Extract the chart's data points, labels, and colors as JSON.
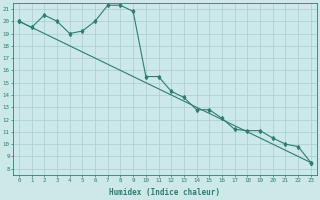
{
  "xlabel": "Humidex (Indice chaleur)",
  "bg_color": "#cde8e8",
  "grid_color": "#aacece",
  "line_color": "#2e7d6e",
  "xlim": [
    -0.5,
    23.5
  ],
  "ylim": [
    7.5,
    21.5
  ],
  "xticks": [
    0,
    1,
    2,
    3,
    4,
    5,
    6,
    7,
    8,
    9,
    10,
    11,
    12,
    13,
    14,
    15,
    16,
    17,
    18,
    19,
    20,
    21,
    22,
    23
  ],
  "yticks": [
    8,
    9,
    10,
    11,
    12,
    13,
    14,
    15,
    16,
    17,
    18,
    19,
    20,
    21
  ],
  "line1_x": [
    0,
    1,
    2,
    3,
    4,
    5,
    6,
    7,
    8,
    9,
    10,
    11,
    12,
    13,
    14,
    15,
    16,
    17,
    18,
    19,
    20,
    21,
    22,
    23
  ],
  "line1_y": [
    20.0,
    19.5,
    20.5,
    20.0,
    19.0,
    19.2,
    20.0,
    21.3,
    21.3,
    20.8,
    15.5,
    15.5,
    14.3,
    13.8,
    12.8,
    12.8,
    12.1,
    11.2,
    11.1,
    11.1,
    10.5,
    10.0,
    9.8,
    8.5
  ],
  "line2_x": [
    0,
    23
  ],
  "line2_y": [
    20.0,
    8.5
  ]
}
